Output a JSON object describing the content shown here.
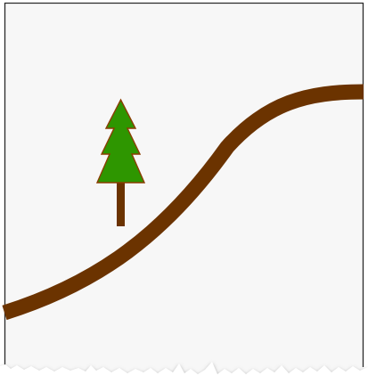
{
  "scene": {
    "background_color": "#f7f7f7",
    "frame_border_color": "#2a2a2a",
    "torn_edge_shadow_color": "#9a9a9a",
    "torn_edge_paper_color": "#ffffff",
    "track": {
      "name": "brown-slope-track",
      "color": "#6b3300"
    },
    "tree": {
      "icon": "pine-tree-icon",
      "foliage_color": "#2e9600",
      "outline_color": "#8a3d00",
      "trunk_color": "#6b3300"
    }
  }
}
